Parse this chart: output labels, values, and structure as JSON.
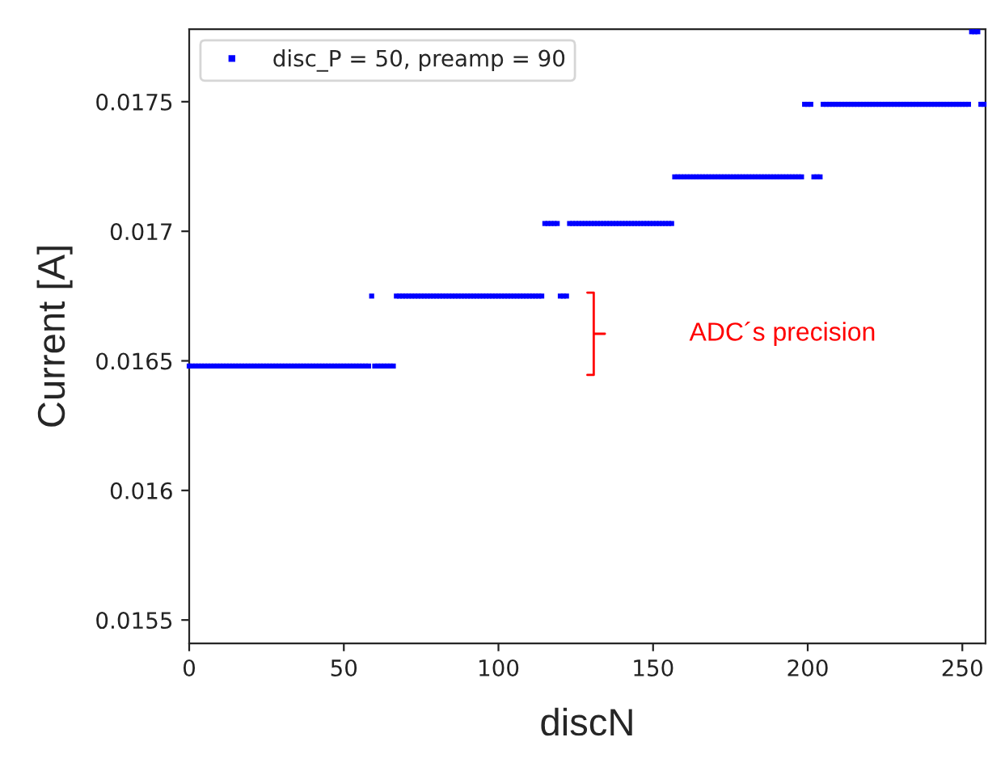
{
  "chart_data": {
    "type": "scatter",
    "xlabel": "discN",
    "ylabel": "Current [A]",
    "x": [
      0,
      1,
      2,
      3,
      4,
      5,
      6,
      7,
      8,
      9,
      10,
      11,
      12,
      13,
      14,
      15,
      16,
      17,
      18,
      19,
      20,
      21,
      22,
      23,
      24,
      25,
      26,
      27,
      28,
      29,
      30,
      31,
      32,
      33,
      34,
      35,
      36,
      37,
      38,
      39,
      40,
      41,
      42,
      43,
      44,
      45,
      46,
      47,
      48,
      49,
      50,
      51,
      52,
      53,
      54,
      55,
      56,
      57,
      58,
      59,
      60,
      61,
      62,
      63,
      64,
      65,
      66,
      67,
      68,
      69,
      70,
      71,
      72,
      73,
      74,
      75,
      76,
      77,
      78,
      79,
      80,
      81,
      82,
      83,
      84,
      85,
      86,
      87,
      88,
      89,
      90,
      91,
      92,
      93,
      94,
      95,
      96,
      97,
      98,
      99,
      100,
      101,
      102,
      103,
      104,
      105,
      106,
      107,
      108,
      109,
      110,
      111,
      112,
      113,
      114,
      115,
      116,
      117,
      118,
      119,
      120,
      121,
      122,
      123,
      124,
      125,
      126,
      127,
      128,
      129,
      130,
      131,
      132,
      133,
      134,
      135,
      136,
      137,
      138,
      139,
      140,
      141,
      142,
      143,
      144,
      145,
      146,
      147,
      148,
      149,
      150,
      151,
      152,
      153,
      154,
      155,
      156,
      157,
      158,
      159,
      160,
      161,
      162,
      163,
      164,
      165,
      166,
      167,
      168,
      169,
      170,
      171,
      172,
      173,
      174,
      175,
      176,
      177,
      178,
      179,
      180,
      181,
      182,
      183,
      184,
      185,
      186,
      187,
      188,
      189,
      190,
      191,
      192,
      193,
      194,
      195,
      196,
      197,
      198,
      199,
      200,
      201,
      202,
      203,
      204,
      205,
      206,
      207,
      208,
      209,
      210,
      211,
      212,
      213,
      214,
      215,
      216,
      217,
      218,
      219,
      220,
      221,
      222,
      223,
      224,
      225,
      226,
      227,
      228,
      229,
      230,
      231,
      232,
      233,
      234,
      235,
      236,
      237,
      238,
      239,
      240,
      241,
      242,
      243,
      244,
      245,
      246,
      247,
      248,
      249,
      250,
      251,
      252,
      253,
      254,
      255,
      256,
      257
    ],
    "series": [
      {
        "name": "disc_P = 50, preamp = 90",
        "color": "#0000ff",
        "values": [
          0.01648,
          0.01648,
          0.01648,
          0.01648,
          0.01648,
          0.01648,
          0.01648,
          0.01648,
          0.01648,
          0.01648,
          0.01648,
          0.01648,
          0.01648,
          0.01648,
          0.01648,
          0.01648,
          0.01648,
          0.01648,
          0.01648,
          0.01648,
          0.01648,
          0.01648,
          0.01648,
          0.01648,
          0.01648,
          0.01648,
          0.01648,
          0.01648,
          0.01648,
          0.01648,
          0.01648,
          0.01648,
          0.01648,
          0.01648,
          0.01648,
          0.01648,
          0.01648,
          0.01648,
          0.01648,
          0.01648,
          0.01648,
          0.01648,
          0.01648,
          0.01648,
          0.01648,
          0.01648,
          0.01648,
          0.01648,
          0.01648,
          0.01648,
          0.01648,
          0.01648,
          0.01648,
          0.01648,
          0.01648,
          0.01648,
          0.01648,
          0.01648,
          0.01648,
          0.01675,
          0.01648,
          0.01648,
          0.01648,
          0.01648,
          0.01648,
          0.01648,
          0.01648,
          0.01675,
          0.01675,
          0.01675,
          0.01675,
          0.01675,
          0.01675,
          0.01675,
          0.01675,
          0.01675,
          0.01675,
          0.01675,
          0.01675,
          0.01675,
          0.01675,
          0.01675,
          0.01675,
          0.01675,
          0.01675,
          0.01675,
          0.01675,
          0.01675,
          0.01675,
          0.01675,
          0.01675,
          0.01675,
          0.01675,
          0.01675,
          0.01675,
          0.01675,
          0.01675,
          0.01675,
          0.01675,
          0.01675,
          0.01675,
          0.01675,
          0.01675,
          0.01675,
          0.01675,
          0.01675,
          0.01675,
          0.01675,
          0.01675,
          0.01675,
          0.01675,
          0.01675,
          0.01675,
          0.01675,
          0.01675,
          0.01703,
          0.01703,
          0.01703,
          0.01703,
          0.01703,
          0.01675,
          0.01675,
          0.01675,
          0.01703,
          0.01703,
          0.01703,
          0.01703,
          0.01703,
          0.01703,
          0.01703,
          0.01703,
          0.01703,
          0.01703,
          0.01703,
          0.01703,
          0.01703,
          0.01703,
          0.01703,
          0.01703,
          0.01703,
          0.01703,
          0.01703,
          0.01703,
          0.01703,
          0.01703,
          0.01703,
          0.01703,
          0.01703,
          0.01703,
          0.01703,
          0.01703,
          0.01703,
          0.01703,
          0.01703,
          0.01703,
          0.01703,
          0.01703,
          0.01721,
          0.01721,
          0.01721,
          0.01721,
          0.01721,
          0.01721,
          0.01721,
          0.01721,
          0.01721,
          0.01721,
          0.01721,
          0.01721,
          0.01721,
          0.01721,
          0.01721,
          0.01721,
          0.01721,
          0.01721,
          0.01721,
          0.01721,
          0.01721,
          0.01721,
          0.01721,
          0.01721,
          0.01721,
          0.01721,
          0.01721,
          0.01721,
          0.01721,
          0.01721,
          0.01721,
          0.01721,
          0.01721,
          0.01721,
          0.01721,
          0.01721,
          0.01721,
          0.01721,
          0.01721,
          0.01721,
          0.01721,
          0.01721,
          0.01749,
          0.01749,
          0.01749,
          0.01721,
          0.01721,
          0.01721,
          0.01749,
          0.01749,
          0.01749,
          0.01749,
          0.01749,
          0.01749,
          0.01749,
          0.01749,
          0.01749,
          0.01749,
          0.01749,
          0.01749,
          0.01749,
          0.01749,
          0.01749,
          0.01749,
          0.01749,
          0.01749,
          0.01749,
          0.01749,
          0.01749,
          0.01749,
          0.01749,
          0.01749,
          0.01749,
          0.01749,
          0.01749,
          0.01749,
          0.01749,
          0.01749,
          0.01749,
          0.01749,
          0.01749,
          0.01749,
          0.01749,
          0.01749,
          0.01749,
          0.01749,
          0.01749,
          0.01749,
          0.01749,
          0.01749,
          0.01749,
          0.01749,
          0.01749,
          0.01749,
          0.01749,
          0.01749,
          0.01777,
          0.01777,
          0.01777,
          0.01749,
          0.01749
        ]
      }
    ],
    "xlim": [
      0,
      257.5
    ],
    "ylim": [
      0.01541,
      0.01778
    ],
    "xticks": [
      0,
      50,
      100,
      150,
      200,
      250
    ],
    "yticks": [
      0.0155,
      0.016,
      0.0165,
      0.017,
      0.0175
    ],
    "marker": "square",
    "legend": "top left",
    "annotations": [
      "ADC´s precision"
    ]
  }
}
